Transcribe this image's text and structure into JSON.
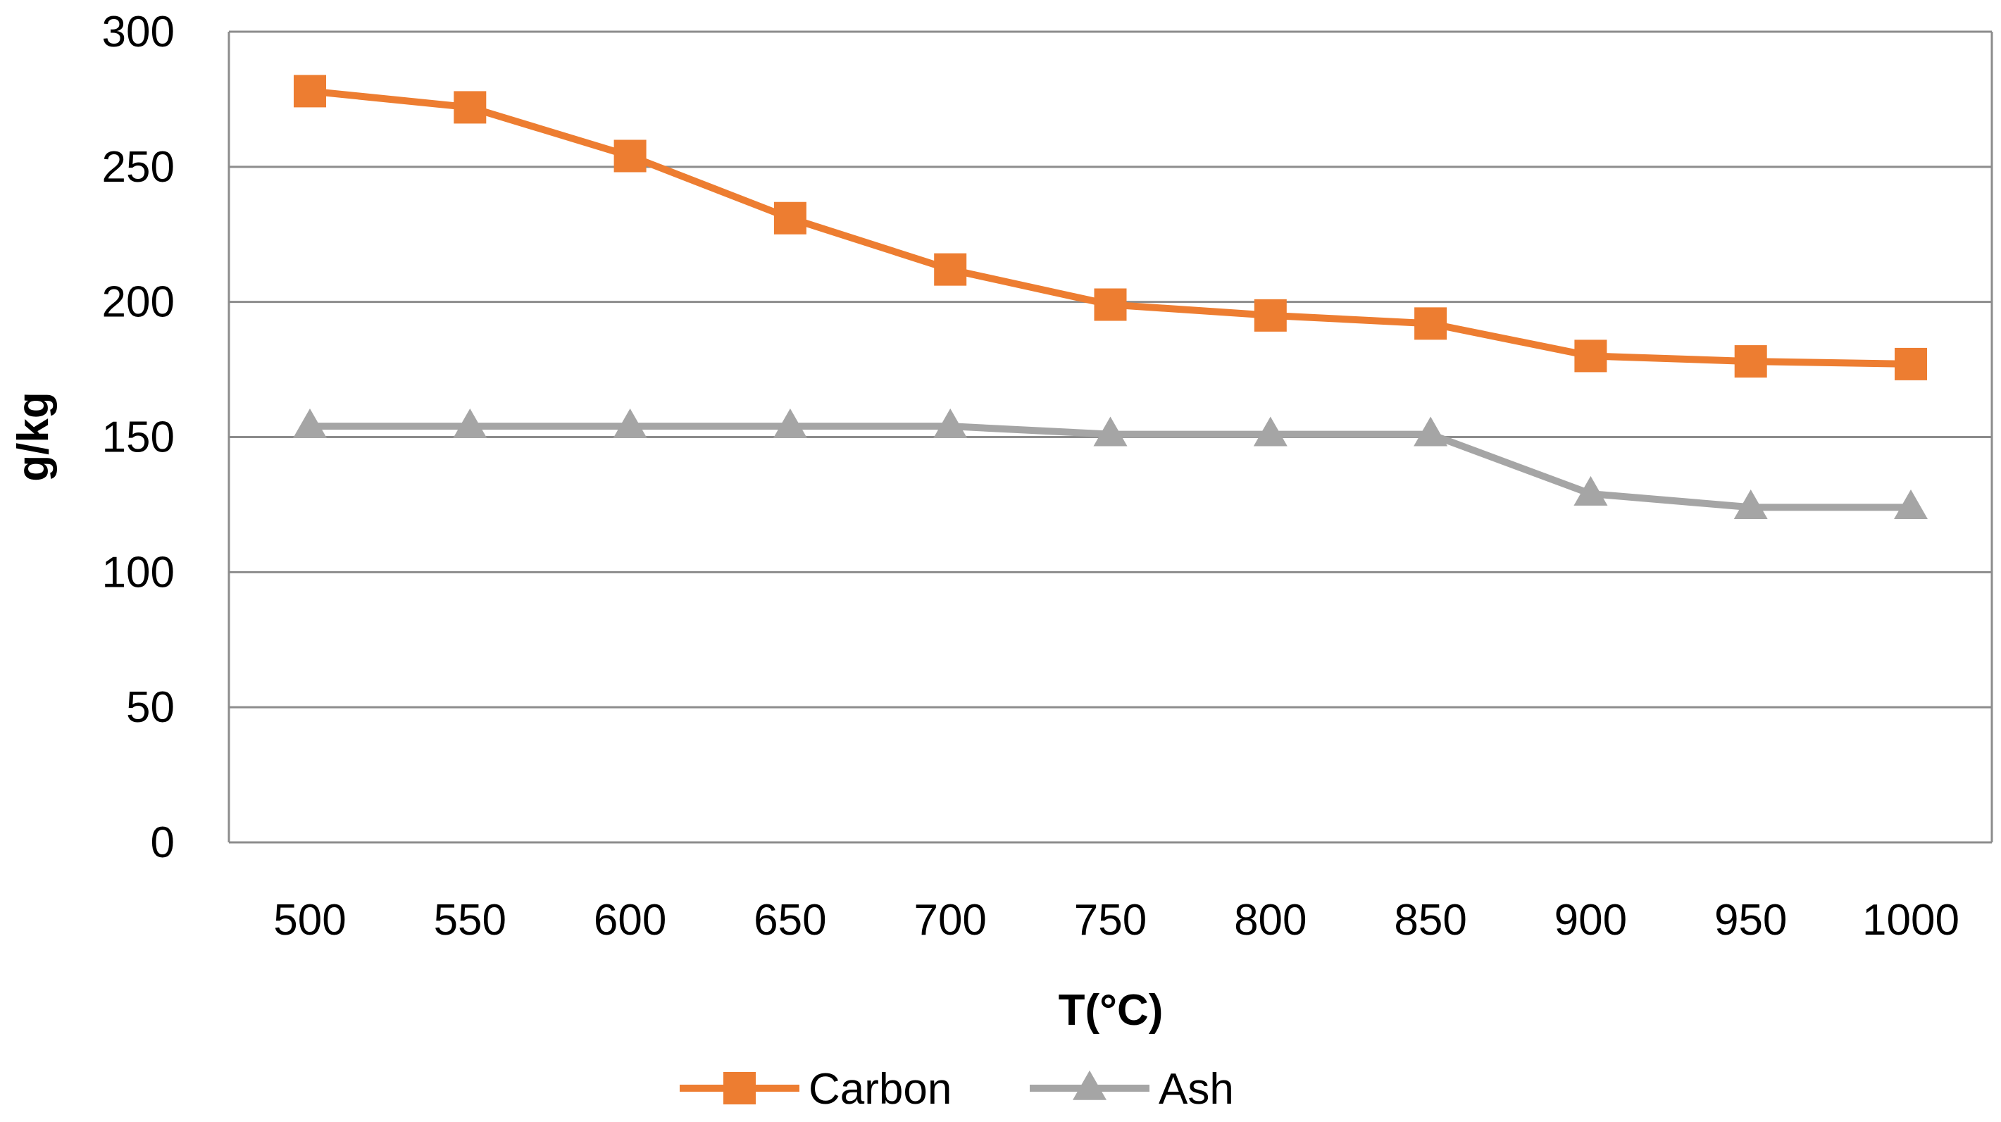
{
  "chart_data": {
    "type": "line",
    "title": "",
    "xlabel": "T(°C)",
    "ylabel": "g/kg",
    "categories": [
      "500",
      "550",
      "600",
      "650",
      "700",
      "750",
      "800",
      "850",
      "900",
      "950",
      "1000"
    ],
    "series": [
      {
        "name": "Carbon",
        "color": "#ED7D31",
        "marker": "square",
        "values": [
          278,
          272,
          254,
          231,
          212,
          199,
          195,
          192,
          180,
          178,
          177
        ]
      },
      {
        "name": "Ash",
        "color": "#A5A5A5",
        "marker": "triangle",
        "values": [
          154,
          154,
          154,
          154,
          154,
          151,
          151,
          151,
          129,
          124,
          124
        ]
      }
    ],
    "ylim": [
      0,
      300
    ],
    "yticks": [
      "0",
      "50",
      "100",
      "150",
      "200",
      "250",
      "300"
    ],
    "grid": true,
    "legend_position": "bottom-center"
  }
}
